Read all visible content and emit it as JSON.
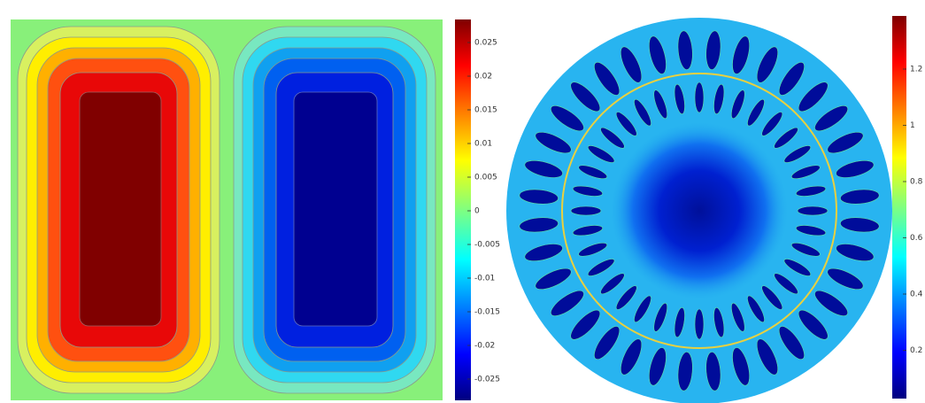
{
  "panels": [
    {
      "colorbar_ticks": [
        "0.025",
        "0.02",
        "0.015",
        "0.01",
        "0.005",
        "0",
        "-0.005",
        "-0.01",
        "-0.015",
        "-0.02",
        "-0.025"
      ]
    },
    {
      "colorbar_ticks": [
        "1.2",
        "1",
        "0.8",
        "0.6",
        "0.4",
        "0.2"
      ]
    }
  ]
}
